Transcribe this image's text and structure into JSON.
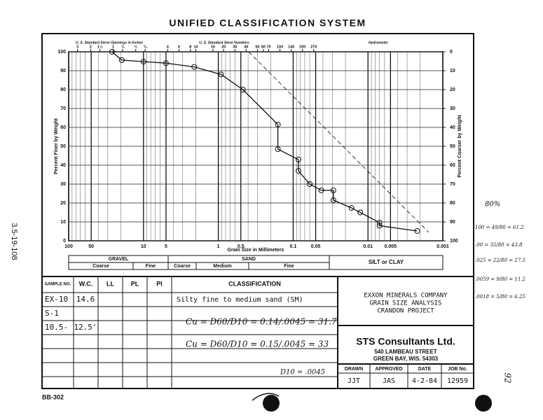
{
  "header": {
    "title": "UNIFIED CLASSIFICATION SYSTEM"
  },
  "chart_data": {
    "type": "line",
    "x_label": "Grain Size in Millimeters",
    "y_label": "Percent Finer by Weight",
    "y2_label": "Percent Coarser by Weight",
    "top_labels": [
      "U. S. Standard Sieve Openings in Inches",
      "U. S. Standard Sieve Numbers",
      "Hydrometer"
    ],
    "x": [
      26.3,
      19.5,
      10,
      5,
      2.1,
      0.92,
      0.47,
      0.16,
      0.16,
      0.085,
      0.085,
      0.06,
      0.042,
      0.029,
      0.029,
      0.0166,
      0.0127,
      0.007,
      0.007,
      0.0022
    ],
    "values": [
      100,
      95.6,
      94.8,
      94,
      92,
      88,
      80,
      61.5,
      48.5,
      43,
      37,
      30,
      26.7,
      26.7,
      21.5,
      17.4,
      15,
      9.6,
      8,
      5.2
    ],
    "color": "#111",
    "x_log": true,
    "xlim": [
      100,
      0.001
    ],
    "xticks": [
      100,
      50,
      10,
      5,
      1,
      0.5,
      0.1,
      0.05,
      0.01,
      0.005,
      0.001
    ],
    "ylim": [
      0,
      100
    ],
    "yticks": [
      0,
      10,
      20,
      30,
      40,
      50,
      60,
      70,
      80,
      90,
      100
    ],
    "y2lim": [
      100,
      0
    ],
    "y2ticks": [
      0,
      10,
      20,
      30,
      40,
      50,
      60,
      70,
      80,
      90,
      100
    ],
    "sieve_inches": [
      {
        "value": 76.2,
        "label": "3"
      },
      {
        "value": 50.8,
        "label": "2"
      },
      {
        "value": 38.1,
        "label": "1½"
      },
      {
        "value": 25.4,
        "label": "1"
      },
      {
        "value": 19.05,
        "label": "¾"
      },
      {
        "value": 12.7,
        "label": "½"
      },
      {
        "value": 9.525,
        "label": "⅜"
      }
    ],
    "sieve_numbers": [
      {
        "value": 4.75,
        "label": "4"
      },
      {
        "value": 3.35,
        "label": "6"
      },
      {
        "value": 2.36,
        "label": "8"
      },
      {
        "value": 2.0,
        "label": "10"
      },
      {
        "value": 1.18,
        "label": "16"
      },
      {
        "value": 0.85,
        "label": "20"
      },
      {
        "value": 0.6,
        "label": "30"
      },
      {
        "value": 0.425,
        "label": "40"
      },
      {
        "value": 0.3,
        "label": "50"
      },
      {
        "value": 0.25,
        "label": "60"
      },
      {
        "value": 0.212,
        "label": "70"
      },
      {
        "value": 0.15,
        "label": "100"
      },
      {
        "value": 0.106,
        "label": "140"
      },
      {
        "value": 0.075,
        "label": "200"
      },
      {
        "value": 0.053,
        "label": "270"
      }
    ],
    "grid": true
  },
  "gradation": {
    "gravel": {
      "name": "GRAVEL",
      "parts": [
        "Coarse",
        "Fine"
      ]
    },
    "sand": {
      "name": "SAND",
      "parts": [
        "Coarse",
        "Medium",
        "Fine"
      ]
    },
    "silt": "SILT or CLAY"
  },
  "table": {
    "headers": [
      "SAMPLE NO.",
      "W.C.",
      "LL",
      "PL",
      "PI",
      "CLASSIFICATION"
    ],
    "sample": [
      "EX-10",
      "S-1",
      "10.5-"
    ],
    "wc": [
      "14.6",
      "12.5'"
    ],
    "classification": "Silty fine to medium sand (SM)",
    "notes": [
      "Cu = D60/D10 = 0.14/.0045 = 31.7",
      "Cu = D60/D10 = 0.15/.0045 = 33",
      "D10 = .0045"
    ]
  },
  "company": [
    "EXXON MINERALS COMPANY",
    "GRAIN SIZE ANALYSIS",
    "CRANDON PROJECT"
  ],
  "consultant": {
    "name": "STS Consultants Ltd.",
    "street": "540 LAMBEAU STREET",
    "city": "GREEN BAY, WIS. 54303"
  },
  "signoff": {
    "headers": [
      "DRAWN",
      "APPROVED",
      "DATE",
      "JOB No."
    ],
    "values": [
      "JJT",
      "JAS",
      "4-2-84",
      "12959"
    ]
  },
  "margin": {
    "left": "3.5-19-108",
    "bottom": "BB-302",
    "right_notes": [
      "80%",
      "100 = 49/80 = 61.2",
      ".00 = 35/80 = 43.8",
      ".025 = 22/80 = 27.5",
      ".0059 = 9/80 = 11.2",
      ".0018 = 5/80 = 6.25"
    ],
    "page": "92"
  }
}
